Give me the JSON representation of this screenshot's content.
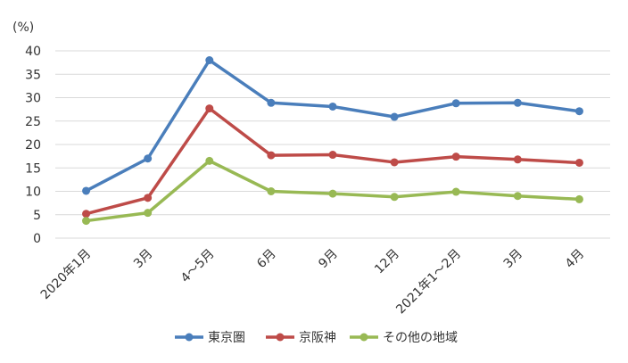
{
  "chart_data": {
    "type": "line",
    "ylabel": "(%)",
    "ylim": [
      0,
      40
    ],
    "yticks": [
      0,
      5,
      10,
      15,
      20,
      25,
      30,
      35,
      40
    ],
    "grid": true,
    "legend": "bottom",
    "categories": [
      "2020年1月",
      "3月",
      "4～5月",
      "6月",
      "9月",
      "12月",
      "2021年1～2月",
      "3月",
      "4月"
    ],
    "series": [
      {
        "name": "東京圏",
        "color": "#4a7ebb",
        "values": [
          10.1,
          17.0,
          38.0,
          28.9,
          28.1,
          25.9,
          28.8,
          28.9,
          27.1
        ]
      },
      {
        "name": "京阪神",
        "color": "#be4b48",
        "values": [
          5.2,
          8.6,
          27.7,
          17.7,
          17.8,
          16.2,
          17.4,
          16.8,
          16.1
        ]
      },
      {
        "name": "その他の地域",
        "color": "#98b954",
        "values": [
          3.7,
          5.4,
          16.5,
          10.0,
          9.5,
          8.8,
          9.9,
          9.0,
          8.3
        ]
      }
    ]
  }
}
